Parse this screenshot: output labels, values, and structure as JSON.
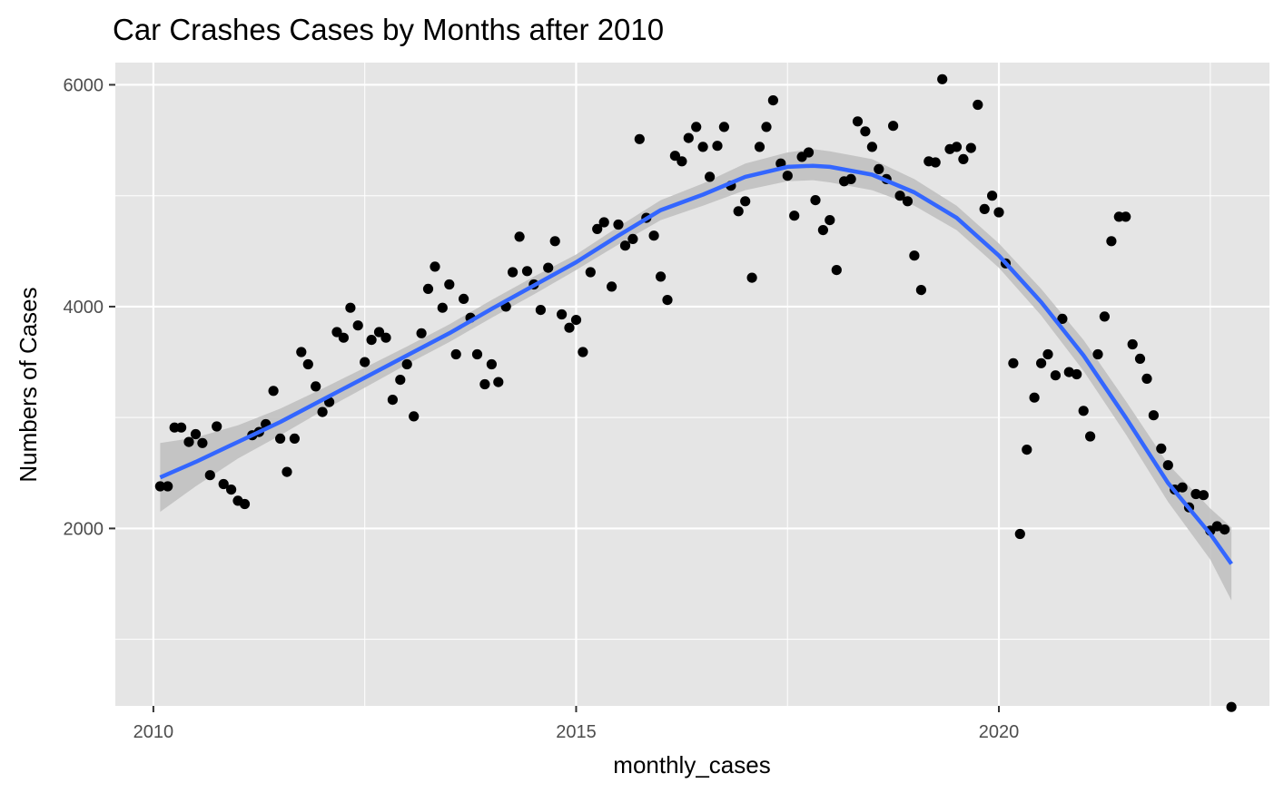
{
  "chart_data": {
    "type": "scatter",
    "title": "Car Crashes Cases by Months after 2010",
    "xlabel": "monthly_cases",
    "ylabel": "Numbers of Cases",
    "xlim": [
      2009.55,
      2023.2
    ],
    "ylim": [
      400,
      6200
    ],
    "x_ticks": [
      2010,
      2015,
      2020
    ],
    "y_ticks": [
      2000,
      4000,
      6000
    ],
    "x_tick_labels": [
      "2010",
      "2015",
      "2020"
    ],
    "y_tick_labels": [
      "2000",
      "4000",
      "6000"
    ],
    "grid": true,
    "legend": "none",
    "colors": {
      "panel_background": "#e5e5e5",
      "grid": "#ffffff",
      "point": "#000000",
      "smooth_line": "#3366ff",
      "confidence_band": "#bebebe"
    },
    "series": [
      {
        "kind": "points",
        "points": [
          [
            2010.08,
            2380
          ],
          [
            2010.17,
            2380
          ],
          [
            2010.25,
            2910
          ],
          [
            2010.33,
            2910
          ],
          [
            2010.42,
            2780
          ],
          [
            2010.5,
            2850
          ],
          [
            2010.58,
            2770
          ],
          [
            2010.67,
            2480
          ],
          [
            2010.75,
            2920
          ],
          [
            2010.83,
            2400
          ],
          [
            2010.92,
            2350
          ],
          [
            2011.0,
            2250
          ],
          [
            2011.08,
            2220
          ],
          [
            2011.17,
            2840
          ],
          [
            2011.25,
            2870
          ],
          [
            2011.33,
            2940
          ],
          [
            2011.42,
            3240
          ],
          [
            2011.5,
            2810
          ],
          [
            2011.58,
            2510
          ],
          [
            2011.67,
            2810
          ],
          [
            2011.75,
            3590
          ],
          [
            2011.83,
            3480
          ],
          [
            2011.92,
            3280
          ],
          [
            2012.0,
            3050
          ],
          [
            2012.08,
            3140
          ],
          [
            2012.17,
            3770
          ],
          [
            2012.25,
            3720
          ],
          [
            2012.33,
            3990
          ],
          [
            2012.42,
            3830
          ],
          [
            2012.5,
            3500
          ],
          [
            2012.58,
            3700
          ],
          [
            2012.67,
            3770
          ],
          [
            2012.75,
            3720
          ],
          [
            2012.83,
            3160
          ],
          [
            2012.92,
            3340
          ],
          [
            2013.0,
            3480
          ],
          [
            2013.08,
            3010
          ],
          [
            2013.17,
            3760
          ],
          [
            2013.25,
            4160
          ],
          [
            2013.33,
            4360
          ],
          [
            2013.42,
            3990
          ],
          [
            2013.5,
            4200
          ],
          [
            2013.58,
            3570
          ],
          [
            2013.67,
            4070
          ],
          [
            2013.75,
            3900
          ],
          [
            2013.83,
            3570
          ],
          [
            2013.92,
            3300
          ],
          [
            2014.0,
            3480
          ],
          [
            2014.08,
            3320
          ],
          [
            2014.17,
            4000
          ],
          [
            2014.25,
            4310
          ],
          [
            2014.33,
            4630
          ],
          [
            2014.42,
            4320
          ],
          [
            2014.5,
            4200
          ],
          [
            2014.58,
            3970
          ],
          [
            2014.67,
            4350
          ],
          [
            2014.75,
            4590
          ],
          [
            2014.83,
            3930
          ],
          [
            2014.92,
            3810
          ],
          [
            2015.0,
            3880
          ],
          [
            2015.08,
            3590
          ],
          [
            2015.17,
            4310
          ],
          [
            2015.25,
            4700
          ],
          [
            2015.33,
            4760
          ],
          [
            2015.42,
            4180
          ],
          [
            2015.5,
            4740
          ],
          [
            2015.58,
            4550
          ],
          [
            2015.67,
            4610
          ],
          [
            2015.75,
            5510
          ],
          [
            2015.83,
            4800
          ],
          [
            2015.92,
            4640
          ],
          [
            2016.0,
            4270
          ],
          [
            2016.08,
            4060
          ],
          [
            2016.17,
            5360
          ],
          [
            2016.25,
            5310
          ],
          [
            2016.33,
            5520
          ],
          [
            2016.42,
            5620
          ],
          [
            2016.5,
            5440
          ],
          [
            2016.58,
            5170
          ],
          [
            2016.67,
            5450
          ],
          [
            2016.75,
            5620
          ],
          [
            2016.83,
            5090
          ],
          [
            2016.92,
            4860
          ],
          [
            2017.0,
            4950
          ],
          [
            2017.08,
            4260
          ],
          [
            2017.17,
            5440
          ],
          [
            2017.25,
            5620
          ],
          [
            2017.33,
            5860
          ],
          [
            2017.42,
            5290
          ],
          [
            2017.5,
            5180
          ],
          [
            2017.58,
            4820
          ],
          [
            2017.67,
            5350
          ],
          [
            2017.75,
            5390
          ],
          [
            2017.83,
            4960
          ],
          [
            2017.92,
            4690
          ],
          [
            2018.0,
            4780
          ],
          [
            2018.08,
            4330
          ],
          [
            2018.17,
            5130
          ],
          [
            2018.25,
            5150
          ],
          [
            2018.33,
            5670
          ],
          [
            2018.42,
            5580
          ],
          [
            2018.5,
            5440
          ],
          [
            2018.58,
            5240
          ],
          [
            2018.67,
            5150
          ],
          [
            2018.75,
            5630
          ],
          [
            2018.83,
            5000
          ],
          [
            2018.92,
            4950
          ],
          [
            2019.0,
            4460
          ],
          [
            2019.08,
            4150
          ],
          [
            2019.17,
            5310
          ],
          [
            2019.25,
            5300
          ],
          [
            2019.33,
            6050
          ],
          [
            2019.42,
            5420
          ],
          [
            2019.5,
            5440
          ],
          [
            2019.58,
            5330
          ],
          [
            2019.67,
            5430
          ],
          [
            2019.75,
            5820
          ],
          [
            2019.83,
            4880
          ],
          [
            2019.92,
            5000
          ],
          [
            2020.0,
            4850
          ],
          [
            2020.08,
            4390
          ],
          [
            2020.17,
            3490
          ],
          [
            2020.25,
            1950
          ],
          [
            2020.33,
            2710
          ],
          [
            2020.42,
            3180
          ],
          [
            2020.5,
            3490
          ],
          [
            2020.58,
            3570
          ],
          [
            2020.67,
            3380
          ],
          [
            2020.75,
            3890
          ],
          [
            2020.83,
            3410
          ],
          [
            2020.92,
            3390
          ],
          [
            2021.0,
            3060
          ],
          [
            2021.08,
            2830
          ],
          [
            2021.17,
            3570
          ],
          [
            2021.25,
            3910
          ],
          [
            2021.33,
            4590
          ],
          [
            2021.42,
            4810
          ],
          [
            2021.5,
            4810
          ],
          [
            2021.58,
            3660
          ],
          [
            2021.67,
            3530
          ],
          [
            2021.75,
            3350
          ],
          [
            2021.83,
            3020
          ],
          [
            2021.92,
            2720
          ],
          [
            2022.0,
            2570
          ],
          [
            2022.08,
            2350
          ],
          [
            2022.17,
            2370
          ],
          [
            2022.25,
            2190
          ],
          [
            2022.33,
            2310
          ],
          [
            2022.42,
            2300
          ],
          [
            2022.5,
            1980
          ],
          [
            2022.58,
            2020
          ],
          [
            2022.67,
            1990
          ],
          [
            2022.75,
            390
          ]
        ]
      },
      {
        "kind": "smooth",
        "method": "loess",
        "line": [
          [
            2010.08,
            2460
          ],
          [
            2010.5,
            2600
          ],
          [
            2011.0,
            2780
          ],
          [
            2011.5,
            2960
          ],
          [
            2012.0,
            3160
          ],
          [
            2012.5,
            3360
          ],
          [
            2013.0,
            3560
          ],
          [
            2013.5,
            3760
          ],
          [
            2014.0,
            3980
          ],
          [
            2014.5,
            4190
          ],
          [
            2015.0,
            4400
          ],
          [
            2015.5,
            4640
          ],
          [
            2016.0,
            4870
          ],
          [
            2016.5,
            5010
          ],
          [
            2017.0,
            5170
          ],
          [
            2017.5,
            5260
          ],
          [
            2017.8,
            5270
          ],
          [
            2018.0,
            5260
          ],
          [
            2018.5,
            5190
          ],
          [
            2019.0,
            5030
          ],
          [
            2019.5,
            4800
          ],
          [
            2020.0,
            4460
          ],
          [
            2020.5,
            4040
          ],
          [
            2021.0,
            3560
          ],
          [
            2021.5,
            3000
          ],
          [
            2022.0,
            2410
          ],
          [
            2022.5,
            1950
          ],
          [
            2022.75,
            1680
          ]
        ],
        "band_upper": [
          [
            2010.08,
            2770
          ],
          [
            2010.5,
            2820
          ],
          [
            2011.0,
            2930
          ],
          [
            2011.5,
            3080
          ],
          [
            2012.0,
            3260
          ],
          [
            2012.5,
            3450
          ],
          [
            2013.0,
            3640
          ],
          [
            2013.5,
            3840
          ],
          [
            2014.0,
            4060
          ],
          [
            2014.5,
            4270
          ],
          [
            2015.0,
            4470
          ],
          [
            2015.5,
            4720
          ],
          [
            2016.0,
            4960
          ],
          [
            2016.5,
            5110
          ],
          [
            2017.0,
            5290
          ],
          [
            2017.5,
            5390
          ],
          [
            2017.8,
            5420
          ],
          [
            2018.0,
            5400
          ],
          [
            2018.5,
            5330
          ],
          [
            2019.0,
            5150
          ],
          [
            2019.5,
            4910
          ],
          [
            2020.0,
            4570
          ],
          [
            2020.5,
            4160
          ],
          [
            2021.0,
            3700
          ],
          [
            2021.5,
            3150
          ],
          [
            2022.0,
            2580
          ],
          [
            2022.5,
            2180
          ],
          [
            2022.75,
            2010
          ]
        ],
        "band_lower": [
          [
            2010.08,
            2150
          ],
          [
            2010.5,
            2380
          ],
          [
            2011.0,
            2630
          ],
          [
            2011.5,
            2840
          ],
          [
            2012.0,
            3060
          ],
          [
            2012.5,
            3270
          ],
          [
            2013.0,
            3480
          ],
          [
            2013.5,
            3680
          ],
          [
            2014.0,
            3900
          ],
          [
            2014.5,
            4110
          ],
          [
            2015.0,
            4330
          ],
          [
            2015.5,
            4560
          ],
          [
            2016.0,
            4780
          ],
          [
            2016.5,
            4910
          ],
          [
            2017.0,
            5050
          ],
          [
            2017.5,
            5130
          ],
          [
            2017.8,
            5140
          ],
          [
            2018.0,
            5120
          ],
          [
            2018.5,
            5050
          ],
          [
            2019.0,
            4910
          ],
          [
            2019.5,
            4690
          ],
          [
            2020.0,
            4350
          ],
          [
            2020.5,
            3920
          ],
          [
            2021.0,
            3420
          ],
          [
            2021.5,
            2850
          ],
          [
            2022.0,
            2240
          ],
          [
            2022.5,
            1720
          ],
          [
            2022.75,
            1350
          ]
        ]
      }
    ]
  }
}
